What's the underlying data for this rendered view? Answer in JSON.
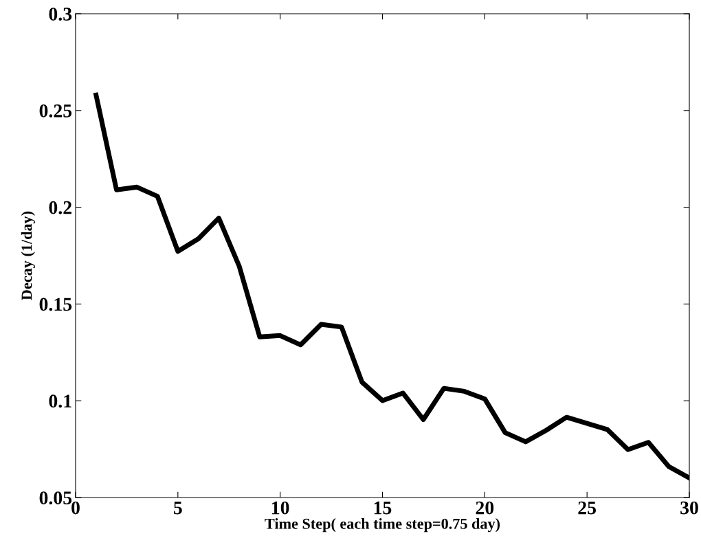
{
  "chart_data": {
    "type": "line",
    "xlabel": "Time Step( each time step=0.75 day)",
    "ylabel": "Decay (1/day)",
    "x": [
      1,
      2,
      3,
      4,
      5,
      6,
      7,
      8,
      9,
      10,
      11,
      12,
      13,
      14,
      15,
      16,
      17,
      18,
      19,
      20,
      21,
      22,
      23,
      24,
      25,
      26,
      27,
      28,
      29,
      30
    ],
    "series": [
      {
        "color": "#000000",
        "values": [
          0.258,
          0.209,
          0.2104,
          0.2057,
          0.1772,
          0.1837,
          0.1944,
          0.1695,
          0.133,
          0.1337,
          0.1289,
          0.1395,
          0.1381,
          0.1096,
          0.1001,
          0.104,
          0.0903,
          0.1064,
          0.1049,
          0.101,
          0.0835,
          0.0788,
          0.0847,
          0.0915,
          0.0883,
          0.0851,
          0.0748,
          0.0785,
          0.066,
          0.0601
        ]
      }
    ],
    "xlim": [
      0,
      30
    ],
    "ylim": [
      0.05,
      0.3
    ],
    "xticks": [
      0,
      5,
      10,
      15,
      20,
      25,
      30
    ],
    "yticks": [
      0.05,
      0.1,
      0.15,
      0.2,
      0.25,
      0.3
    ],
    "grid": false,
    "legend": false,
    "marker": "none",
    "line_style": "solid"
  }
}
